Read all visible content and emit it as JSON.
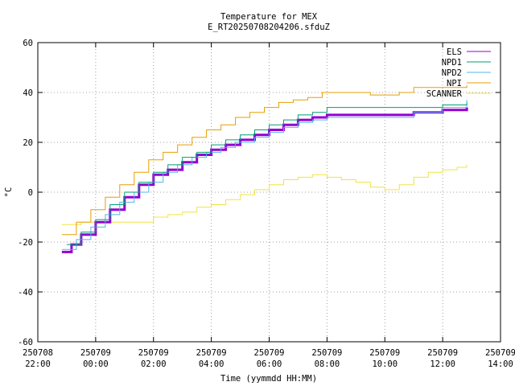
{
  "chart_data": {
    "type": "line",
    "title": "Temperature for MEX",
    "subtitle": "E_RT20250708204206.sfduZ",
    "xlabel": "Time (yymmdd HH:MM)",
    "ylabel": "°C",
    "xlim": [
      "2025-07-08 22:00",
      "2025-07-09 14:00"
    ],
    "ylim": [
      -60,
      60
    ],
    "grid": true,
    "legend_position": "top-right",
    "x_ticks": [
      {
        "t": "2025-07-08 22:00",
        "date": "250708",
        "time": "22:00"
      },
      {
        "t": "2025-07-09 00:00",
        "date": "250709",
        "time": "00:00"
      },
      {
        "t": "2025-07-09 02:00",
        "date": "250709",
        "time": "02:00"
      },
      {
        "t": "2025-07-09 04:00",
        "date": "250709",
        "time": "04:00"
      },
      {
        "t": "2025-07-09 06:00",
        "date": "250709",
        "time": "06:00"
      },
      {
        "t": "2025-07-09 08:00",
        "date": "250709",
        "time": "08:00"
      },
      {
        "t": "2025-07-09 10:00",
        "date": "250709",
        "time": "10:00"
      },
      {
        "t": "2025-07-09 12:00",
        "date": "250709",
        "time": "12:00"
      },
      {
        "t": "2025-07-09 14:00",
        "date": "250709",
        "time": "14:00"
      }
    ],
    "y_ticks": [
      -60,
      -40,
      -20,
      0,
      20,
      40,
      60
    ],
    "series": [
      {
        "name": "ELS",
        "color": "#9400d3",
        "width": 3,
        "points": [
          [
            "2025-07-08 22:50",
            -24
          ],
          [
            "2025-07-08 23:10",
            -21
          ],
          [
            "2025-07-08 23:30",
            -17
          ],
          [
            "2025-07-09 00:00",
            -12
          ],
          [
            "2025-07-09 00:30",
            -7
          ],
          [
            "2025-07-09 01:00",
            -2
          ],
          [
            "2025-07-09 01:30",
            3
          ],
          [
            "2025-07-09 02:00",
            7
          ],
          [
            "2025-07-09 02:30",
            9
          ],
          [
            "2025-07-09 03:00",
            12
          ],
          [
            "2025-07-09 03:30",
            15
          ],
          [
            "2025-07-09 04:00",
            17
          ],
          [
            "2025-07-09 04:30",
            19
          ],
          [
            "2025-07-09 05:00",
            21
          ],
          [
            "2025-07-09 05:30",
            23
          ],
          [
            "2025-07-09 06:00",
            25
          ],
          [
            "2025-07-09 06:30",
            27
          ],
          [
            "2025-07-09 07:00",
            29
          ],
          [
            "2025-07-09 07:30",
            30
          ],
          [
            "2025-07-09 08:00",
            31
          ],
          [
            "2025-07-09 08:30",
            31
          ],
          [
            "2025-07-09 09:00",
            31
          ],
          [
            "2025-07-09 10:00",
            31
          ],
          [
            "2025-07-09 11:00",
            32
          ],
          [
            "2025-07-09 12:00",
            33
          ],
          [
            "2025-07-09 12:50",
            34
          ]
        ]
      },
      {
        "name": "NPD1",
        "color": "#009e73",
        "width": 1,
        "points": [
          [
            "2025-07-08 23:00",
            -21
          ],
          [
            "2025-07-08 23:30",
            -16
          ],
          [
            "2025-07-09 00:00",
            -11
          ],
          [
            "2025-07-09 00:30",
            -5
          ],
          [
            "2025-07-09 01:00",
            0
          ],
          [
            "2025-07-09 01:30",
            4
          ],
          [
            "2025-07-09 02:00",
            8
          ],
          [
            "2025-07-09 02:30",
            11
          ],
          [
            "2025-07-09 03:00",
            14
          ],
          [
            "2025-07-09 03:30",
            16
          ],
          [
            "2025-07-09 04:00",
            19
          ],
          [
            "2025-07-09 04:30",
            21
          ],
          [
            "2025-07-09 05:00",
            23
          ],
          [
            "2025-07-09 05:30",
            25
          ],
          [
            "2025-07-09 06:00",
            27
          ],
          [
            "2025-07-09 06:30",
            29
          ],
          [
            "2025-07-09 07:00",
            31
          ],
          [
            "2025-07-09 07:30",
            32
          ],
          [
            "2025-07-09 08:00",
            34
          ],
          [
            "2025-07-09 09:00",
            34
          ],
          [
            "2025-07-09 10:00",
            34
          ],
          [
            "2025-07-09 11:00",
            34
          ],
          [
            "2025-07-09 12:00",
            35
          ],
          [
            "2025-07-09 12:50",
            36
          ]
        ]
      },
      {
        "name": "NPD2",
        "color": "#56b4e9",
        "width": 1,
        "points": [
          [
            "2025-07-08 22:50",
            -23
          ],
          [
            "2025-07-08 23:20",
            -19
          ],
          [
            "2025-07-08 23:50",
            -14
          ],
          [
            "2025-07-09 00:20",
            -9
          ],
          [
            "2025-07-09 00:50",
            -4
          ],
          [
            "2025-07-09 01:20",
            0
          ],
          [
            "2025-07-09 01:50",
            4
          ],
          [
            "2025-07-09 02:20",
            8
          ],
          [
            "2025-07-09 02:50",
            11
          ],
          [
            "2025-07-09 03:20",
            14
          ],
          [
            "2025-07-09 03:50",
            16
          ],
          [
            "2025-07-09 04:20",
            18
          ],
          [
            "2025-07-09 04:50",
            20
          ],
          [
            "2025-07-09 05:30",
            22
          ],
          [
            "2025-07-09 06:00",
            24
          ],
          [
            "2025-07-09 06:30",
            26
          ],
          [
            "2025-07-09 07:00",
            28
          ],
          [
            "2025-07-09 07:30",
            29
          ],
          [
            "2025-07-09 08:00",
            30
          ],
          [
            "2025-07-09 09:00",
            30
          ],
          [
            "2025-07-09 10:00",
            30
          ],
          [
            "2025-07-09 11:00",
            32
          ],
          [
            "2025-07-09 12:00",
            34
          ],
          [
            "2025-07-09 12:50",
            37
          ]
        ]
      },
      {
        "name": "NPI",
        "color": "#e69f00",
        "width": 1,
        "points": [
          [
            "2025-07-08 22:50",
            -17
          ],
          [
            "2025-07-08 23:20",
            -12
          ],
          [
            "2025-07-08 23:50",
            -7
          ],
          [
            "2025-07-09 00:20",
            -2
          ],
          [
            "2025-07-09 00:50",
            3
          ],
          [
            "2025-07-09 01:20",
            8
          ],
          [
            "2025-07-09 01:50",
            13
          ],
          [
            "2025-07-09 02:20",
            16
          ],
          [
            "2025-07-09 02:50",
            19
          ],
          [
            "2025-07-09 03:20",
            22
          ],
          [
            "2025-07-09 03:50",
            25
          ],
          [
            "2025-07-09 04:20",
            27
          ],
          [
            "2025-07-09 04:50",
            30
          ],
          [
            "2025-07-09 05:20",
            32
          ],
          [
            "2025-07-09 05:50",
            34
          ],
          [
            "2025-07-09 06:20",
            36
          ],
          [
            "2025-07-09 06:50",
            37
          ],
          [
            "2025-07-09 07:20",
            38
          ],
          [
            "2025-07-09 07:50",
            40
          ],
          [
            "2025-07-09 08:30",
            40
          ],
          [
            "2025-07-09 09:30",
            39
          ],
          [
            "2025-07-09 10:30",
            40
          ],
          [
            "2025-07-09 11:00",
            42
          ],
          [
            "2025-07-09 12:00",
            42
          ],
          [
            "2025-07-09 12:50",
            43
          ]
        ]
      },
      {
        "name": "SCANNER",
        "color": "#f0e442",
        "width": 1,
        "points": [
          [
            "2025-07-08 22:50",
            -13
          ],
          [
            "2025-07-08 23:30",
            -12
          ],
          [
            "2025-07-09 00:00",
            -12
          ],
          [
            "2025-07-09 00:30",
            -12
          ],
          [
            "2025-07-09 01:00",
            -12
          ],
          [
            "2025-07-09 01:30",
            -12
          ],
          [
            "2025-07-09 02:00",
            -10
          ],
          [
            "2025-07-09 02:30",
            -9
          ],
          [
            "2025-07-09 03:00",
            -8
          ],
          [
            "2025-07-09 03:30",
            -6
          ],
          [
            "2025-07-09 04:00",
            -5
          ],
          [
            "2025-07-09 04:30",
            -3
          ],
          [
            "2025-07-09 05:00",
            -1
          ],
          [
            "2025-07-09 05:30",
            1
          ],
          [
            "2025-07-09 06:00",
            3
          ],
          [
            "2025-07-09 06:30",
            5
          ],
          [
            "2025-07-09 07:00",
            6
          ],
          [
            "2025-07-09 07:30",
            7
          ],
          [
            "2025-07-09 08:00",
            6
          ],
          [
            "2025-07-09 08:30",
            5
          ],
          [
            "2025-07-09 09:00",
            4
          ],
          [
            "2025-07-09 09:30",
            2
          ],
          [
            "2025-07-09 10:00",
            1
          ],
          [
            "2025-07-09 10:30",
            3
          ],
          [
            "2025-07-09 11:00",
            6
          ],
          [
            "2025-07-09 11:30",
            8
          ],
          [
            "2025-07-09 12:00",
            9
          ],
          [
            "2025-07-09 12:30",
            10
          ],
          [
            "2025-07-09 12:50",
            11
          ]
        ]
      }
    ]
  }
}
